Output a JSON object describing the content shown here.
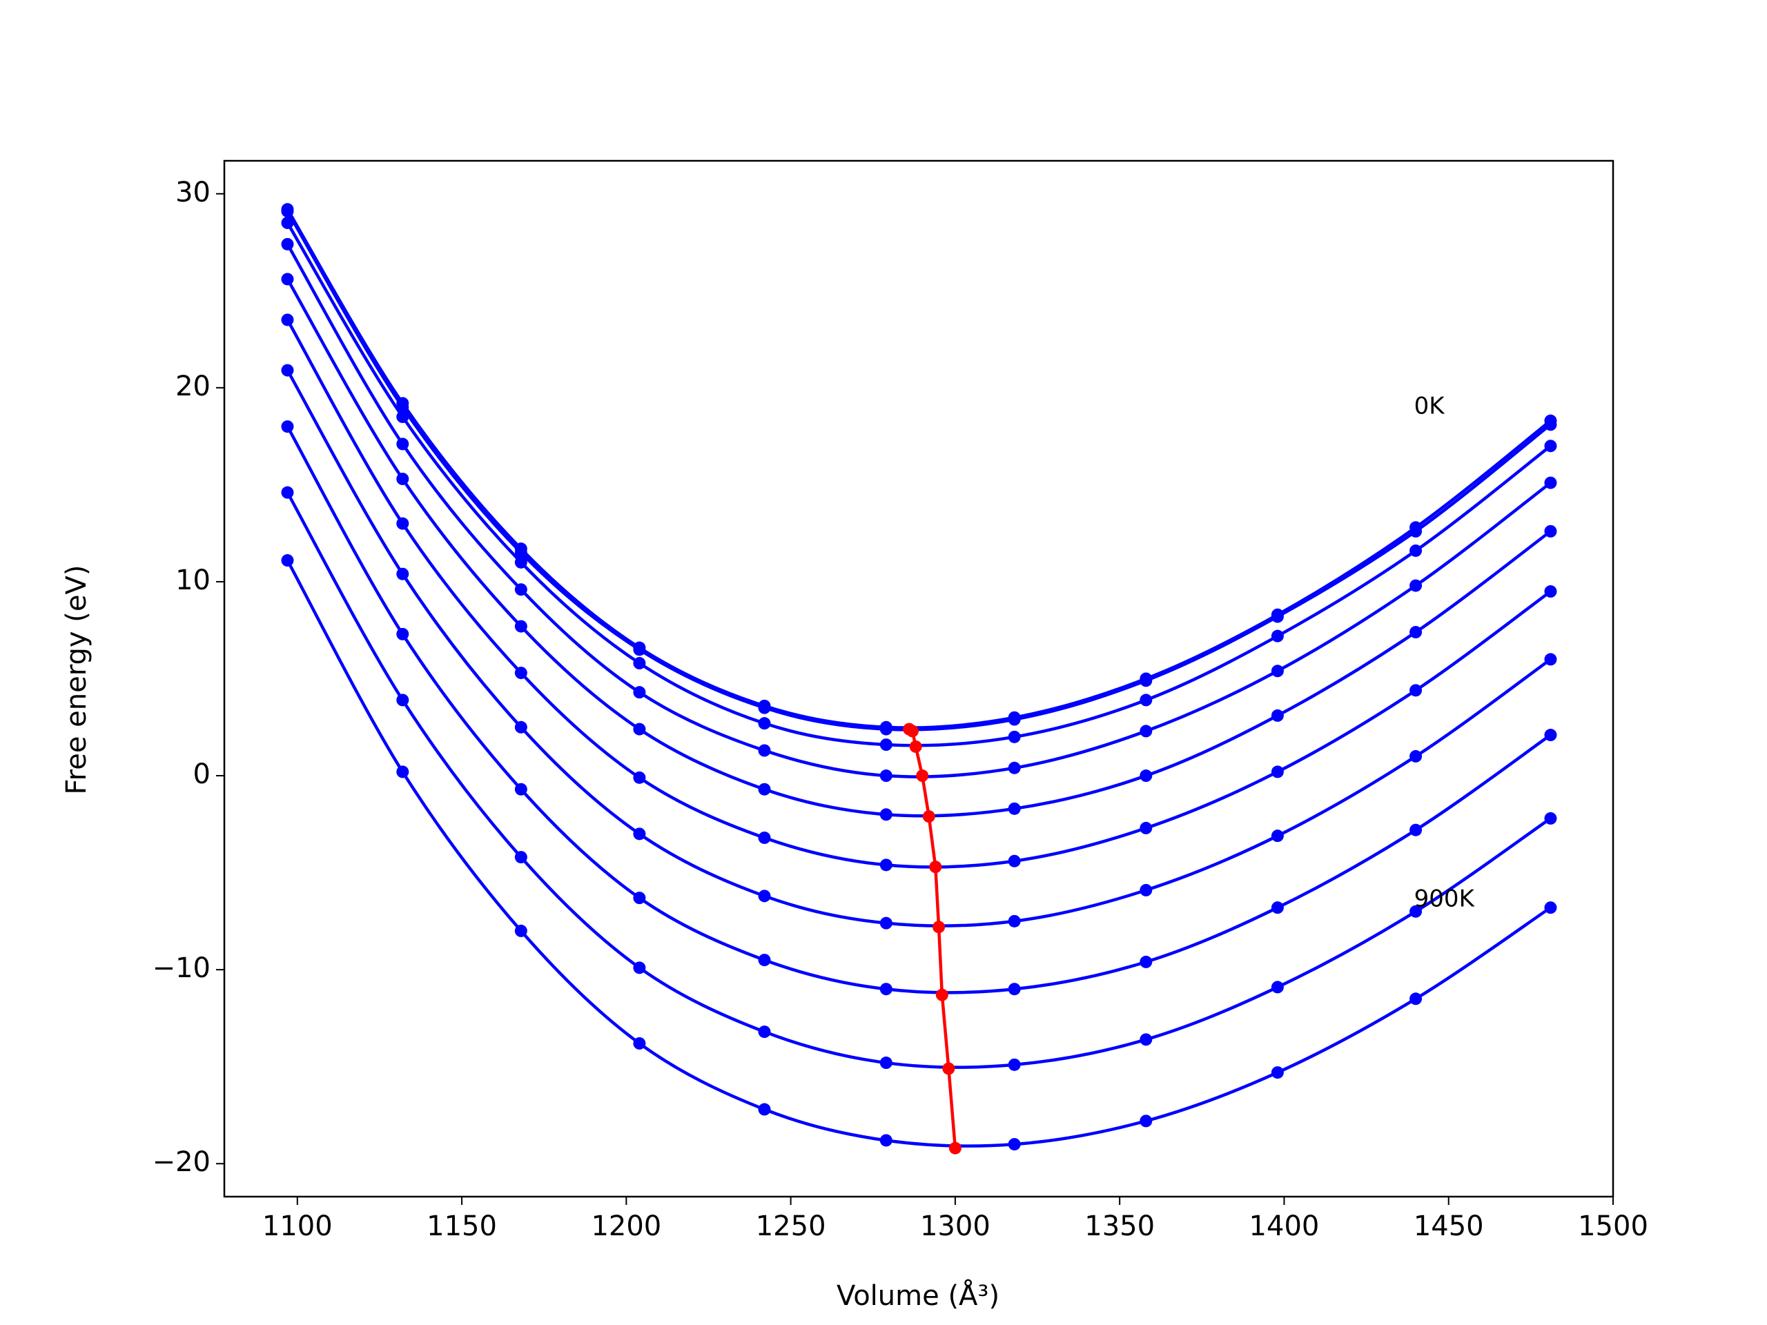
{
  "chart_data": {
    "type": "line",
    "x_label": "Volume (Å³)",
    "y_label": "Free energy (eV)",
    "x": [
      1097,
      1132,
      1168,
      1204,
      1242,
      1279,
      1318,
      1358,
      1398,
      1440,
      1481
    ],
    "series": [
      {
        "color": "#0000ff",
        "values": [
          29.2,
          19.2,
          11.7,
          6.6,
          3.6,
          2.5,
          3.0,
          5.0,
          8.3,
          12.8,
          18.3
        ]
      },
      {
        "color": "#0000ff",
        "values": [
          29.1,
          19.0,
          11.5,
          6.5,
          3.5,
          2.4,
          2.9,
          4.9,
          8.2,
          12.6,
          18.1
        ]
      },
      {
        "color": "#0000ff",
        "values": [
          28.5,
          18.5,
          11.0,
          5.8,
          2.7,
          1.6,
          2.0,
          3.9,
          7.2,
          11.6,
          17.0
        ]
      },
      {
        "color": "#0000ff",
        "values": [
          27.4,
          17.1,
          9.6,
          4.3,
          1.3,
          0.0,
          0.4,
          2.3,
          5.4,
          9.8,
          15.1
        ]
      },
      {
        "color": "#0000ff",
        "values": [
          25.6,
          15.3,
          7.7,
          2.4,
          -0.7,
          -2.0,
          -1.7,
          0.0,
          3.1,
          7.4,
          12.6
        ]
      },
      {
        "color": "#0000ff",
        "values": [
          23.5,
          13.0,
          5.3,
          -0.1,
          -3.2,
          -4.6,
          -4.4,
          -2.7,
          0.2,
          4.4,
          9.5
        ]
      },
      {
        "color": "#0000ff",
        "values": [
          20.9,
          10.4,
          2.5,
          -3.0,
          -6.2,
          -7.6,
          -7.5,
          -5.9,
          -3.1,
          1.0,
          6.0
        ]
      },
      {
        "color": "#0000ff",
        "values": [
          18.0,
          7.3,
          -0.7,
          -6.3,
          -9.5,
          -11.0,
          -11.0,
          -9.6,
          -6.8,
          -2.8,
          2.1
        ]
      },
      {
        "color": "#0000ff",
        "values": [
          14.6,
          3.9,
          -4.2,
          -9.9,
          -13.2,
          -14.8,
          -14.9,
          -13.6,
          -10.9,
          -7.0,
          -2.2
        ]
      },
      {
        "color": "#0000ff",
        "values": [
          11.1,
          0.2,
          -8.0,
          -13.8,
          -17.2,
          -18.8,
          -19.0,
          -17.8,
          -15.3,
          -11.5,
          -6.8
        ]
      },
      {
        "color": "#ff0000",
        "x": [
          1286,
          1287,
          1288,
          1290,
          1292,
          1294,
          1295,
          1296,
          1298,
          1300
        ],
        "values": [
          2.4,
          2.3,
          1.5,
          0.0,
          -2.1,
          -4.7,
          -7.8,
          -11.3,
          -15.1,
          -19.2
        ]
      }
    ],
    "annotations": [
      {
        "text": "0K",
        "x": 1439.5,
        "y": 19.0
      },
      {
        "text": "900K",
        "x": 1439.5,
        "y": -6.4
      }
    ],
    "xlim": [
      1077.8,
      1500
    ],
    "ylim": [
      -21.7,
      31.7
    ],
    "xticks": [
      1100,
      1150,
      1200,
      1250,
      1300,
      1350,
      1400,
      1450,
      1500
    ],
    "yticks": [
      {
        "value": -20,
        "label": "−20"
      },
      {
        "value": -10,
        "label": "−10"
      },
      0,
      10,
      20,
      30
    ],
    "grid": false
  }
}
